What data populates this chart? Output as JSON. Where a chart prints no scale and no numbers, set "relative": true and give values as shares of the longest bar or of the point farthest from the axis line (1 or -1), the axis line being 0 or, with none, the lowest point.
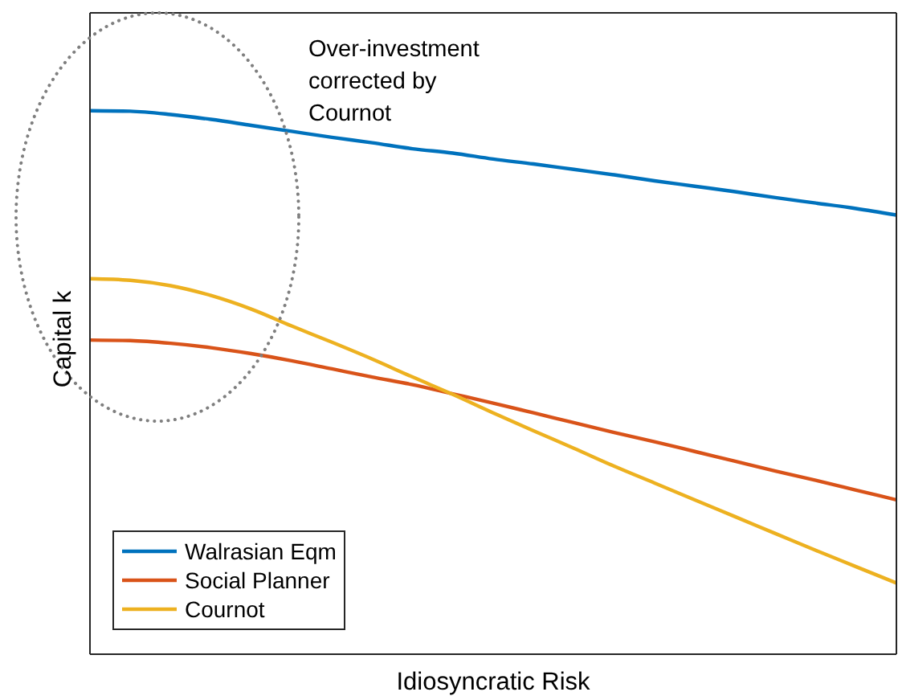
{
  "chart_data": {
    "type": "line",
    "xlabel": "Idiosyncratic Risk",
    "ylabel": "Capital k",
    "annotations": [
      "Over-investment corrected by Cournot"
    ],
    "categories": [
      null,
      null,
      null,
      null,
      null,
      null,
      null,
      null,
      null,
      null,
      null,
      null,
      null,
      null,
      null,
      null,
      null,
      null,
      null,
      null,
      null
    ],
    "relative": true,
    "legend": "bottom left",
    "marker": "none",
    "line_style": "solid",
    "series": [
      {
        "name": "Walrasian Eqm",
        "color": "#0072bd",
        "values": [
          1.0,
          0.999,
          0.993,
          0.984,
          0.973,
          0.962,
          0.951,
          0.941,
          0.93,
          0.922,
          0.911,
          0.902,
          0.892,
          0.882,
          0.871,
          0.861,
          0.851,
          0.84,
          0.83,
          0.82,
          0.808
        ]
      },
      {
        "name": "Social Planner",
        "color": "#d95319",
        "values": [
          0.578,
          0.577,
          0.572,
          0.564,
          0.553,
          0.54,
          0.525,
          0.51,
          0.496,
          0.479,
          0.462,
          0.444,
          0.426,
          0.408,
          0.391,
          0.373,
          0.355,
          0.337,
          0.32,
          0.302,
          0.284
        ]
      },
      {
        "name": "Cournot",
        "color": "#edb120",
        "values": [
          0.691,
          0.688,
          0.678,
          0.66,
          0.635,
          0.604,
          0.574,
          0.543,
          0.51,
          0.478,
          0.444,
          0.411,
          0.379,
          0.346,
          0.315,
          0.284,
          0.253,
          0.222,
          0.191,
          0.161,
          0.131
        ]
      }
    ]
  }
}
